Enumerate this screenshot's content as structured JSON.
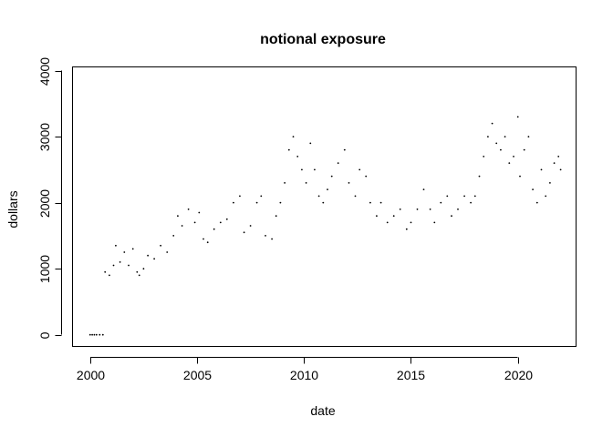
{
  "chart_data": {
    "type": "scatter",
    "title": "notional exposure",
    "xlabel": "date",
    "ylabel": "dollars",
    "xlim": [
      1999.2,
      2022.7
    ],
    "ylim": [
      -170,
      4050
    ],
    "x_ticks": [
      2000,
      2005,
      2010,
      2015,
      2020
    ],
    "y_ticks": [
      0,
      1000,
      2000,
      3000,
      4000
    ],
    "grid": false,
    "legend": "none",
    "marker_color": "#000000",
    "series": [
      {
        "points": [
          [
            2000.0,
            0
          ],
          [
            2000.1,
            0
          ],
          [
            2000.2,
            0
          ],
          [
            2000.3,
            0
          ],
          [
            2000.45,
            0
          ],
          [
            2000.6,
            0
          ],
          [
            2000.7,
            950
          ],
          [
            2000.9,
            900
          ],
          [
            2001.1,
            1050
          ],
          [
            2001.2,
            1350
          ],
          [
            2001.4,
            1100
          ],
          [
            2001.6,
            1250
          ],
          [
            2001.8,
            1050
          ],
          [
            2002.0,
            1300
          ],
          [
            2002.2,
            950
          ],
          [
            2002.3,
            900
          ],
          [
            2002.5,
            1000
          ],
          [
            2002.7,
            1200
          ],
          [
            2003.0,
            1150
          ],
          [
            2003.3,
            1350
          ],
          [
            2003.6,
            1250
          ],
          [
            2003.9,
            1500
          ],
          [
            2004.1,
            1800
          ],
          [
            2004.3,
            1650
          ],
          [
            2004.6,
            1900
          ],
          [
            2004.9,
            1700
          ],
          [
            2005.1,
            1850
          ],
          [
            2005.3,
            1450
          ],
          [
            2005.5,
            1400
          ],
          [
            2005.8,
            1600
          ],
          [
            2006.1,
            1700
          ],
          [
            2006.4,
            1750
          ],
          [
            2006.7,
            2000
          ],
          [
            2007.0,
            2100
          ],
          [
            2007.2,
            1550
          ],
          [
            2007.5,
            1650
          ],
          [
            2007.8,
            2000
          ],
          [
            2008.0,
            2100
          ],
          [
            2008.2,
            1500
          ],
          [
            2008.5,
            1450
          ],
          [
            2008.7,
            1800
          ],
          [
            2008.9,
            2000
          ],
          [
            2009.1,
            2300
          ],
          [
            2009.3,
            2800
          ],
          [
            2009.5,
            3000
          ],
          [
            2009.7,
            2700
          ],
          [
            2009.9,
            2500
          ],
          [
            2010.1,
            2300
          ],
          [
            2010.3,
            2900
          ],
          [
            2010.5,
            2500
          ],
          [
            2010.7,
            2100
          ],
          [
            2010.9,
            2000
          ],
          [
            2011.1,
            2200
          ],
          [
            2011.3,
            2400
          ],
          [
            2011.6,
            2600
          ],
          [
            2011.9,
            2800
          ],
          [
            2012.1,
            2300
          ],
          [
            2012.4,
            2100
          ],
          [
            2012.6,
            2500
          ],
          [
            2012.9,
            2400
          ],
          [
            2013.1,
            2000
          ],
          [
            2013.4,
            1800
          ],
          [
            2013.6,
            2000
          ],
          [
            2013.9,
            1700
          ],
          [
            2014.2,
            1800
          ],
          [
            2014.5,
            1900
          ],
          [
            2014.8,
            1600
          ],
          [
            2015.0,
            1700
          ],
          [
            2015.3,
            1900
          ],
          [
            2015.6,
            2200
          ],
          [
            2015.9,
            1900
          ],
          [
            2016.1,
            1700
          ],
          [
            2016.4,
            2000
          ],
          [
            2016.7,
            2100
          ],
          [
            2016.9,
            1800
          ],
          [
            2017.2,
            1900
          ],
          [
            2017.5,
            2100
          ],
          [
            2017.8,
            2000
          ],
          [
            2018.0,
            2100
          ],
          [
            2018.2,
            2400
          ],
          [
            2018.4,
            2700
          ],
          [
            2018.6,
            3000
          ],
          [
            2018.8,
            3200
          ],
          [
            2019.0,
            2900
          ],
          [
            2019.2,
            2800
          ],
          [
            2019.4,
            3000
          ],
          [
            2019.6,
            2600
          ],
          [
            2019.8,
            2700
          ],
          [
            2020.0,
            3300
          ],
          [
            2020.1,
            2400
          ],
          [
            2020.3,
            2800
          ],
          [
            2020.5,
            3000
          ],
          [
            2020.7,
            2200
          ],
          [
            2020.9,
            2000
          ],
          [
            2021.1,
            2500
          ],
          [
            2021.3,
            2100
          ],
          [
            2021.5,
            2300
          ],
          [
            2021.7,
            2600
          ],
          [
            2021.9,
            2700
          ],
          [
            2022.0,
            2500
          ]
        ]
      }
    ]
  }
}
